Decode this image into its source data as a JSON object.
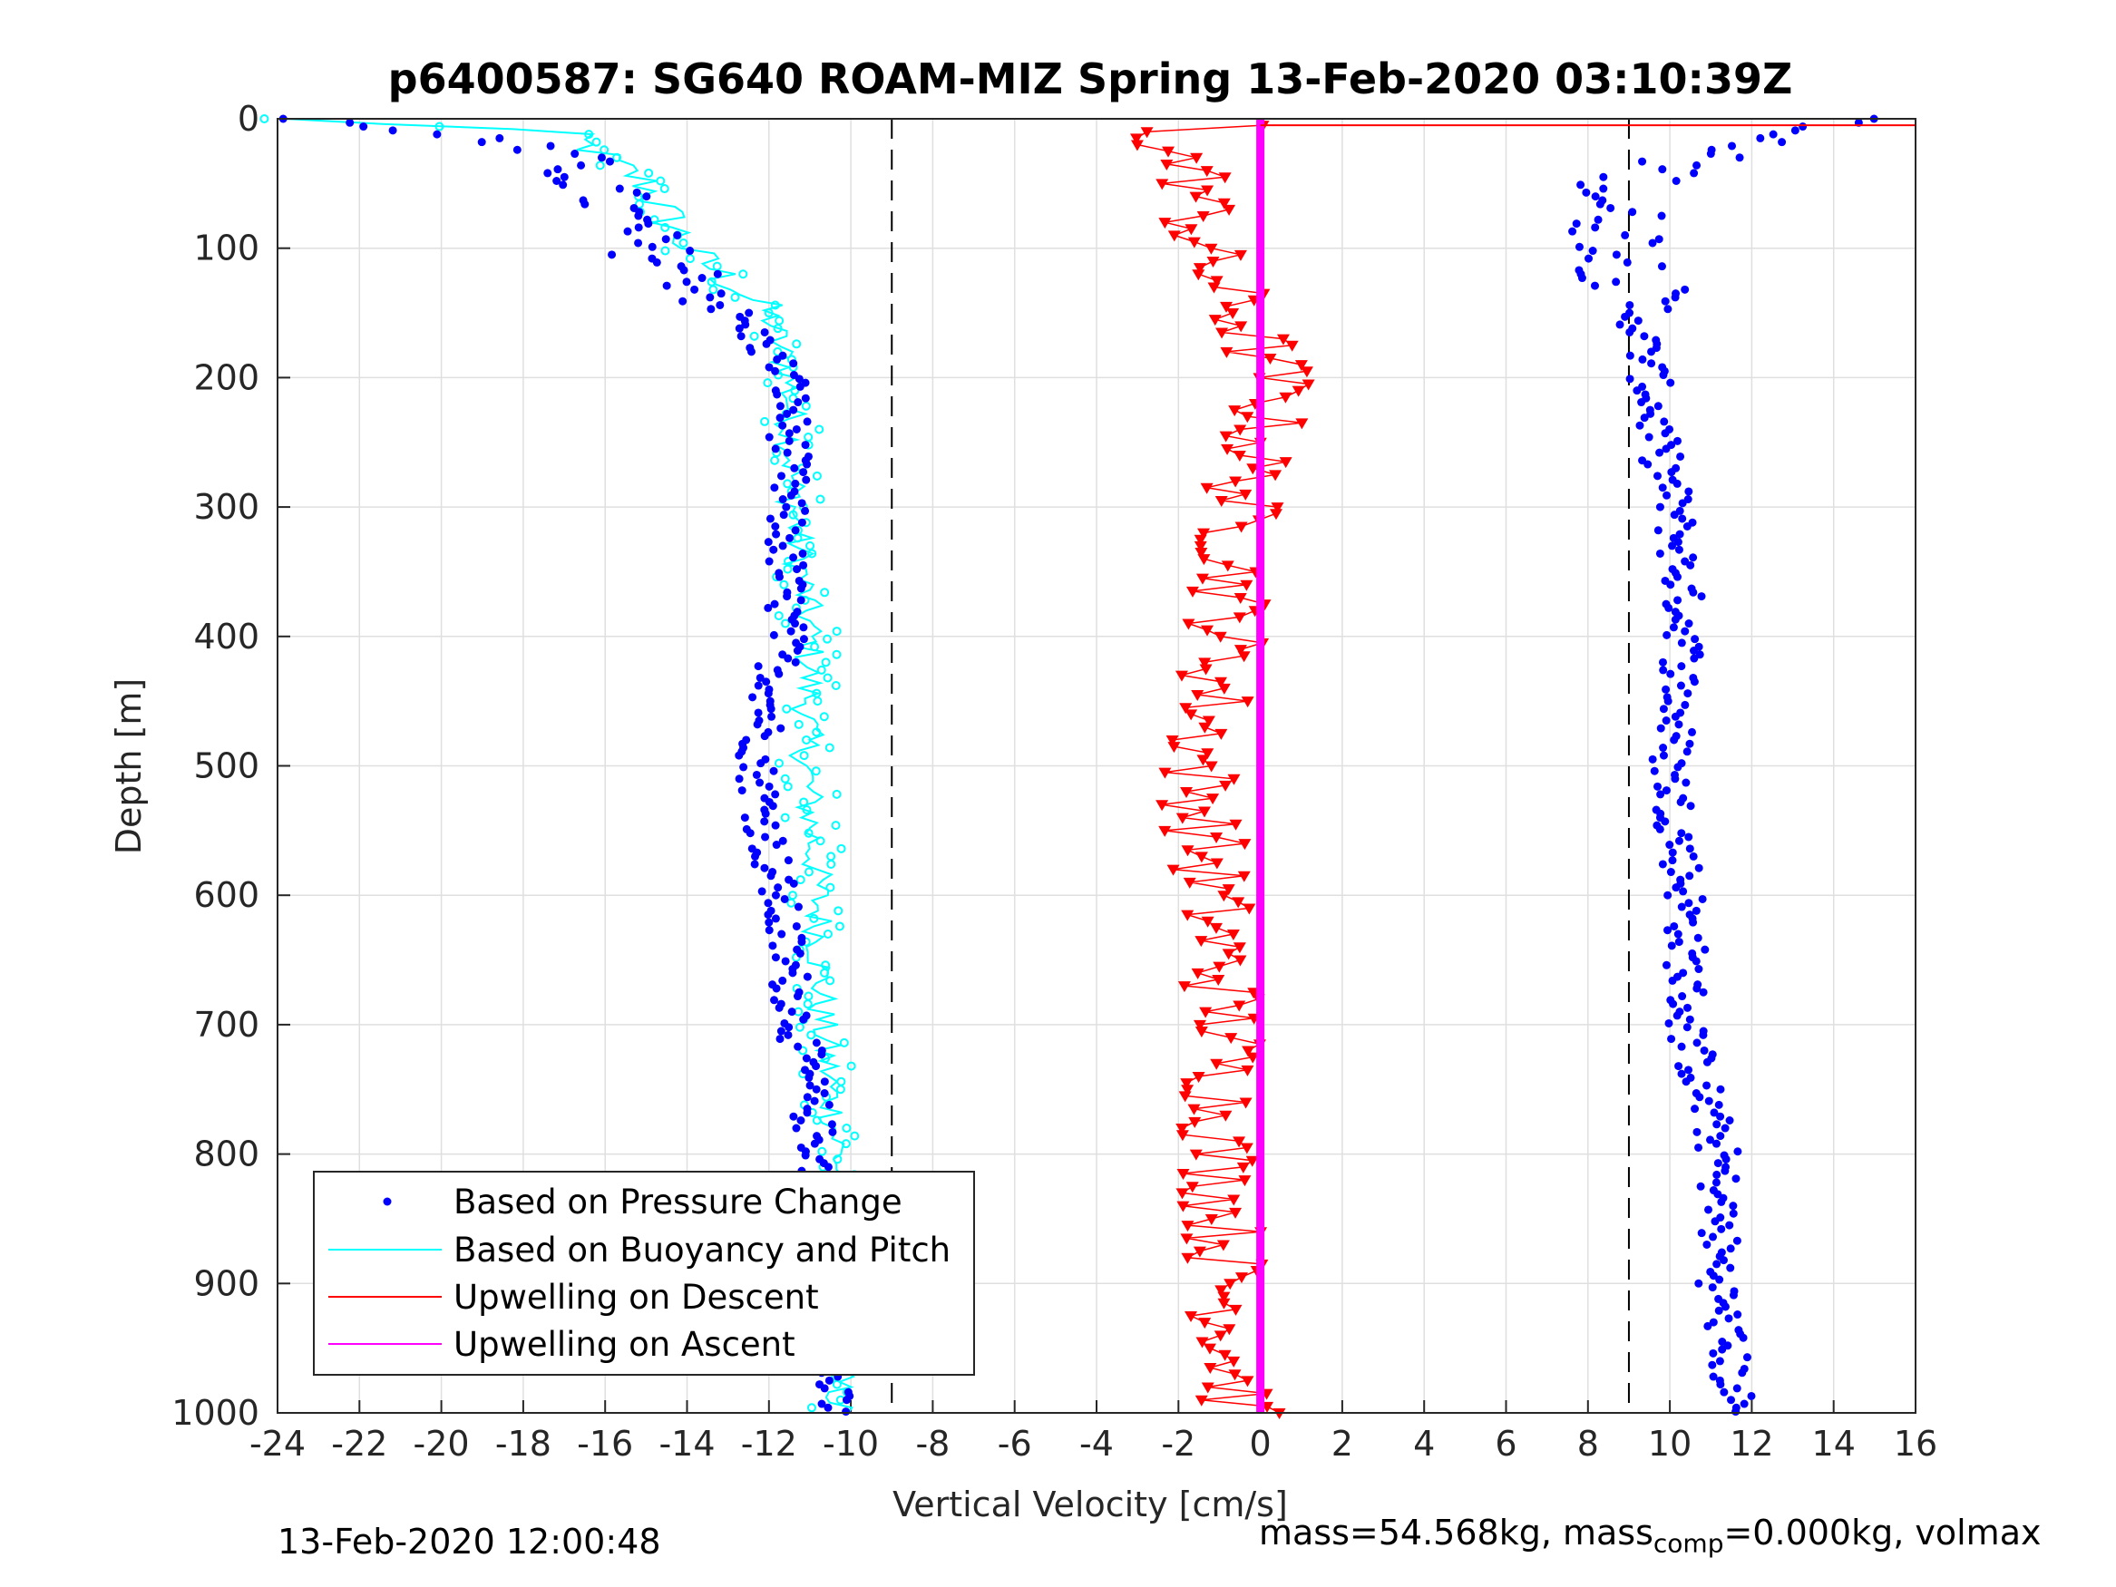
{
  "chart_data": {
    "type": "scatter",
    "title": "p6400587: SG640 ROAM-MIZ Spring 13-Feb-2020 03:10:39Z",
    "xlabel": "Vertical Velocity [cm/s]",
    "ylabel": "Depth [m]",
    "xlim": [
      -24,
      16
    ],
    "ylim": [
      0,
      1000
    ],
    "y_reversed": true,
    "x_ticks": [
      "-24",
      "-22",
      "-20",
      "-18",
      "-16",
      "-14",
      "-12",
      "-10",
      "-8",
      "-6",
      "-4",
      "-2",
      "0",
      "2",
      "4",
      "6",
      "8",
      "10",
      "12",
      "14",
      "16"
    ],
    "y_ticks": [
      "0",
      "100",
      "200",
      "300",
      "400",
      "500",
      "600",
      "700",
      "800",
      "900",
      "1000"
    ],
    "grid": true,
    "legend_position": "bottom-left",
    "reference_lines_dashed_x": [
      -9,
      9
    ],
    "series": [
      {
        "name": "Based on Pressure Change",
        "color": "#0000ff",
        "marker": "dot",
        "descent_profile": [
          [
            0,
            -24
          ],
          [
            10,
            -20
          ],
          [
            30,
            -17
          ],
          [
            60,
            -16
          ],
          [
            100,
            -15
          ],
          [
            130,
            -13.5
          ],
          [
            170,
            -12.3
          ],
          [
            200,
            -11.5
          ],
          [
            250,
            -11.5
          ],
          [
            300,
            -11.6
          ],
          [
            400,
            -11.6
          ],
          [
            500,
            -12.3
          ],
          [
            600,
            -11.8
          ],
          [
            700,
            -11.3
          ],
          [
            800,
            -10.8
          ],
          [
            900,
            -10.5
          ],
          [
            1000,
            -10.5
          ]
        ],
        "ascent_profile": [
          [
            0,
            14
          ],
          [
            30,
            10.5
          ],
          [
            60,
            8.5
          ],
          [
            100,
            9.0
          ],
          [
            150,
            9.2
          ],
          [
            200,
            9.5
          ],
          [
            250,
            9.7
          ],
          [
            300,
            10.1
          ],
          [
            400,
            10.4
          ],
          [
            500,
            10.0
          ],
          [
            600,
            10.4
          ],
          [
            700,
            10.4
          ],
          [
            800,
            11.2
          ],
          [
            900,
            11.2
          ],
          [
            1000,
            11.6
          ]
        ]
      },
      {
        "name": "Based on Buoyancy and Pitch",
        "color": "#00ffff",
        "marker": "circle-line",
        "descent_profile": [
          [
            0,
            -24
          ],
          [
            10,
            -17
          ],
          [
            50,
            -15
          ],
          [
            100,
            -14
          ],
          [
            150,
            -12
          ],
          [
            200,
            -11.5
          ],
          [
            300,
            -11.4
          ],
          [
            400,
            -11.0
          ],
          [
            500,
            -11.1
          ],
          [
            600,
            -10.8
          ],
          [
            700,
            -10.7
          ],
          [
            800,
            -10.3
          ],
          [
            900,
            -10.3
          ],
          [
            1000,
            -10.3
          ]
        ]
      },
      {
        "name": "Upwelling on Descent",
        "color": "#ff0000",
        "marker": "triangle-down",
        "profile": [
          [
            10,
            -2.5
          ],
          [
            50,
            -1.5
          ],
          [
            100,
            -1.5
          ],
          [
            200,
            0.4
          ],
          [
            300,
            -0.5
          ],
          [
            400,
            -0.8
          ],
          [
            500,
            -1.5
          ],
          [
            600,
            -1.2
          ],
          [
            700,
            -0.8
          ],
          [
            800,
            -1.0
          ],
          [
            900,
            -0.8
          ],
          [
            1000,
            -0.5
          ]
        ]
      },
      {
        "name": "Upwelling on Ascent",
        "color": "#ff00ff",
        "marker": "line",
        "profile": [
          [
            0,
            0
          ],
          [
            1000,
            0
          ]
        ]
      }
    ],
    "annotations": [
      "13-Feb-2020 12:00:48",
      "mass=54.568kg, mass",
      "comp",
      "=0.000kg, volmax"
    ]
  },
  "footer": {
    "timestamp": "13-Feb-2020 12:00:48",
    "mass_text": "mass=54.568kg, mass",
    "mass_sub": "comp",
    "mass_rest": "=0.000kg, volmax"
  },
  "colors": {
    "pressure": "#0000ff",
    "buoyancy": "#00ffff",
    "descent": "#ff0000",
    "ascent": "#ff00ff",
    "grid": "#dfdfdf"
  }
}
